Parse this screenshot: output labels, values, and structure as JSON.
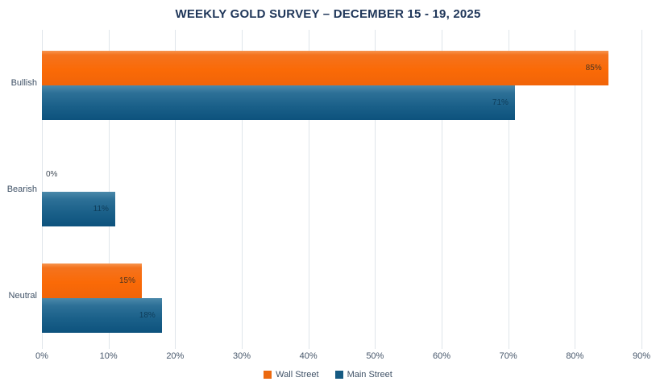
{
  "chart_data": {
    "type": "bar",
    "orientation": "horizontal",
    "title": "WEEKLY GOLD SURVEY – DECEMBER 15 - 19, 2025",
    "categories": [
      "Bullish",
      "Bearish",
      "Neutral"
    ],
    "series": [
      {
        "name": "Wall Street",
        "values": [
          85,
          0,
          15
        ],
        "value_labels": [
          "85%",
          "0%",
          "15%"
        ],
        "color": "#ec690f"
      },
      {
        "name": "Main Street",
        "values": [
          71,
          11,
          18
        ],
        "value_labels": [
          "71%",
          "11%",
          "18%"
        ],
        "color": "#155a82"
      }
    ],
    "xlim": [
      0,
      90
    ],
    "x_ticks": [
      "0%",
      "10%",
      "20%",
      "30%",
      "40%",
      "50%",
      "60%",
      "70%",
      "80%",
      "90%"
    ],
    "grid": "vertical",
    "gridline_color": "#dfe5ea",
    "legend_position": "bottom",
    "value_label_placement": "inside-end (outside-end when 0)",
    "title_color": "#20375a",
    "label_color": "#3f5166"
  }
}
